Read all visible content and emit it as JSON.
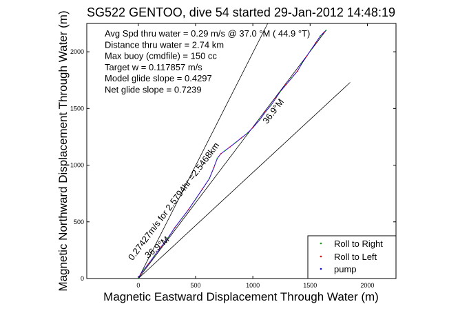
{
  "chart_data": {
    "type": "line",
    "title": "SG522 GENTOO, dive 54 started 29-Jan-2012 14:48:19",
    "xlabel": "Magnetic Eastward Displacement Through Water (m)",
    "ylabel": "Magnetic Northward Displacement Through Water (m)",
    "xlim": [
      -450,
      2250
    ],
    "ylim": [
      0,
      2250
    ],
    "xticks": [
      0,
      500,
      1000,
      1500,
      2000
    ],
    "yticks": [
      0,
      500,
      1000,
      1500,
      2000
    ],
    "xtick_labels": [
      "0",
      "500",
      "1000",
      "1500",
      "2000"
    ],
    "ytick_labels": [
      "0",
      "500",
      "1000",
      "1500",
      "2000"
    ],
    "grid": false,
    "legend_position": "bottom-right",
    "info_lines": [
      "Avg Spd thru water =  0.29 m/s @  37.0    °M ( 44.9 °T)",
      "Distance thru water =  2.74 km",
      "Max buoy (cmdfile) = 150 cc",
      "Target w = 0.117857 m/s",
      "Model glide slope = 0.4297",
      "Net glide slope = 0.7239"
    ],
    "reference_lines": [
      {
        "x": [
          0,
          1130
        ],
        "y": [
          0,
          2250
        ]
      },
      {
        "x": [
          0,
          1850
        ],
        "y": [
          0,
          1730
        ]
      },
      {
        "x": [
          0,
          1640
        ],
        "y": [
          0,
          2190
        ]
      }
    ],
    "reference_labels": [
      {
        "text": "0.27427m/s for 2.5794hr =2.5468km",
        "x": 330,
        "y": 665,
        "angle": -53
      },
      {
        "text": "36.9°M",
        "x": 1200,
        "y": 1460,
        "angle": -53
      },
      {
        "text": "36.9°M",
        "x": 180,
        "y": 255,
        "angle": -40
      }
    ],
    "series": [
      {
        "name": "Roll to Right",
        "color": "#00aa00",
        "x": [
          0,
          20,
          50,
          90,
          140,
          200,
          260,
          320,
          380,
          440,
          500,
          560,
          620,
          660,
          690,
          720,
          760,
          800,
          850,
          900,
          950,
          1000,
          1060,
          1110,
          1160,
          1200,
          1240,
          1290,
          1340,
          1390,
          1430,
          1470,
          1510,
          1550,
          1590,
          1620,
          1640
        ],
        "y": [
          0,
          40,
          80,
          130,
          200,
          280,
          360,
          450,
          530,
          610,
          700,
          790,
          880,
          980,
          1060,
          1100,
          1130,
          1160,
          1200,
          1240,
          1280,
          1330,
          1400,
          1470,
          1530,
          1590,
          1650,
          1710,
          1770,
          1830,
          1900,
          1960,
          2020,
          2080,
          2140,
          2170,
          2190
        ]
      },
      {
        "name": "Roll to Left",
        "color": "#ff0000",
        "x": [],
        "y": []
      },
      {
        "name": "pump",
        "color": "#0000ff",
        "x": [],
        "y": []
      }
    ]
  }
}
